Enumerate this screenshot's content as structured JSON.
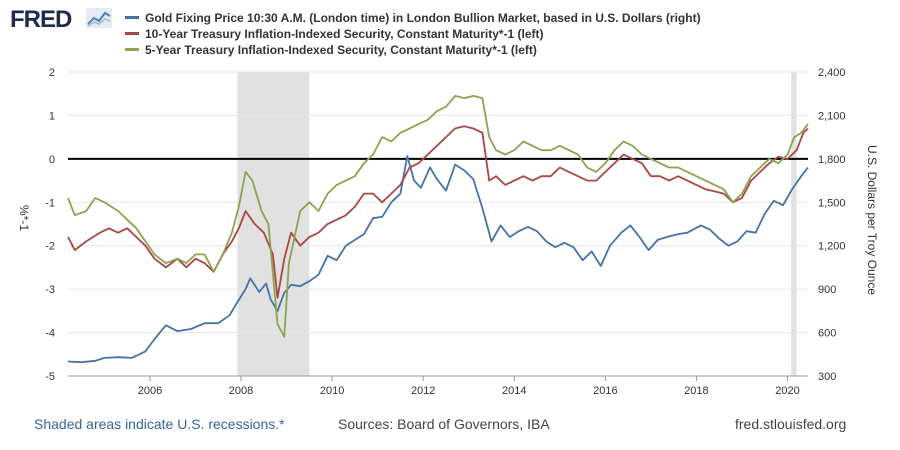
{
  "brand": {
    "logo_text": "FRED",
    "logo_icon": "chart-line-icon"
  },
  "legend": [
    {
      "label": "Gold Fixing Price 10:30 A.M. (London time) in London Bullion Market, based in U.S. Dollars (right)",
      "color": "#4572a7"
    },
    {
      "label": "10-Year Treasury Inflation-Indexed Security, Constant Maturity*-1 (left)",
      "color": "#aa4643"
    },
    {
      "label": "5-Year Treasury Inflation-Indexed Security, Constant Maturity*-1 (left)",
      "color": "#89a54e"
    }
  ],
  "footer": {
    "note": "Shaded areas indicate U.S. recessions.*",
    "sources": "Sources: Board of Governors, IBA",
    "site": "fred.stlouisfed.org"
  },
  "chart_data": {
    "type": "line",
    "x_axis": {
      "min": 2004.2,
      "max": 2020.45,
      "ticks": [
        2006,
        2008,
        2010,
        2012,
        2014,
        2016,
        2018,
        2020
      ],
      "tick_labels": [
        "2006",
        "2008",
        "2010",
        "2012",
        "2014",
        "2016",
        "2018",
        "2020"
      ]
    },
    "y_left": {
      "label": "%*-1",
      "min": -5,
      "max": 2,
      "ticks": [
        -5,
        -4,
        -3,
        -2,
        -1,
        0,
        1,
        2
      ],
      "tick_labels": [
        "-5",
        "-4",
        "-3",
        "-2",
        "-1",
        "0",
        "1",
        "2"
      ]
    },
    "y_right": {
      "label": "U.S. Dollars per Troy Ounce",
      "min": 300,
      "max": 2400,
      "ticks": [
        300,
        600,
        900,
        1200,
        1500,
        1800,
        2100,
        2400
      ],
      "tick_labels": [
        "300",
        "600",
        "900",
        "1,200",
        "1,500",
        "1,800",
        "2,100",
        "2,400"
      ]
    },
    "grid": true,
    "zero_line": 0,
    "recessions": [
      [
        2007.92,
        2009.5
      ],
      [
        2020.08,
        2020.2
      ]
    ],
    "series": [
      {
        "name": "Gold Fixing Price 10:30 A.M. (London time) in London Bullion Market, based in U.S. Dollars (right)",
        "axis": "right",
        "color": "#4572a7",
        "points": [
          [
            2004.2,
            400
          ],
          [
            2004.5,
            395
          ],
          [
            2004.8,
            405
          ],
          [
            2005.0,
            425
          ],
          [
            2005.3,
            430
          ],
          [
            2005.6,
            425
          ],
          [
            2005.9,
            470
          ],
          [
            2006.1,
            555
          ],
          [
            2006.35,
            650
          ],
          [
            2006.6,
            610
          ],
          [
            2006.9,
            625
          ],
          [
            2007.2,
            665
          ],
          [
            2007.5,
            665
          ],
          [
            2007.75,
            720
          ],
          [
            2007.9,
            800
          ],
          [
            2008.1,
            900
          ],
          [
            2008.2,
            975
          ],
          [
            2008.4,
            880
          ],
          [
            2008.55,
            940
          ],
          [
            2008.65,
            830
          ],
          [
            2008.8,
            750
          ],
          [
            2008.95,
            875
          ],
          [
            2009.1,
            930
          ],
          [
            2009.3,
            920
          ],
          [
            2009.5,
            955
          ],
          [
            2009.7,
            1000
          ],
          [
            2009.9,
            1130
          ],
          [
            2010.1,
            1100
          ],
          [
            2010.3,
            1200
          ],
          [
            2010.5,
            1240
          ],
          [
            2010.7,
            1280
          ],
          [
            2010.9,
            1390
          ],
          [
            2011.1,
            1400
          ],
          [
            2011.3,
            1500
          ],
          [
            2011.5,
            1560
          ],
          [
            2011.65,
            1820
          ],
          [
            2011.8,
            1650
          ],
          [
            2011.95,
            1600
          ],
          [
            2012.15,
            1740
          ],
          [
            2012.3,
            1660
          ],
          [
            2012.5,
            1580
          ],
          [
            2012.7,
            1760
          ],
          [
            2012.9,
            1720
          ],
          [
            2013.1,
            1660
          ],
          [
            2013.3,
            1460
          ],
          [
            2013.5,
            1230
          ],
          [
            2013.7,
            1340
          ],
          [
            2013.9,
            1260
          ],
          [
            2014.1,
            1300
          ],
          [
            2014.3,
            1330
          ],
          [
            2014.5,
            1300
          ],
          [
            2014.7,
            1230
          ],
          [
            2014.9,
            1190
          ],
          [
            2015.1,
            1220
          ],
          [
            2015.3,
            1190
          ],
          [
            2015.5,
            1100
          ],
          [
            2015.7,
            1160
          ],
          [
            2015.9,
            1060
          ],
          [
            2016.1,
            1200
          ],
          [
            2016.35,
            1290
          ],
          [
            2016.55,
            1340
          ],
          [
            2016.75,
            1260
          ],
          [
            2016.95,
            1170
          ],
          [
            2017.15,
            1240
          ],
          [
            2017.35,
            1260
          ],
          [
            2017.6,
            1280
          ],
          [
            2017.8,
            1290
          ],
          [
            2018.1,
            1340
          ],
          [
            2018.3,
            1310
          ],
          [
            2018.5,
            1250
          ],
          [
            2018.7,
            1200
          ],
          [
            2018.9,
            1230
          ],
          [
            2019.1,
            1300
          ],
          [
            2019.3,
            1290
          ],
          [
            2019.5,
            1420
          ],
          [
            2019.7,
            1510
          ],
          [
            2019.9,
            1480
          ],
          [
            2020.1,
            1590
          ],
          [
            2020.3,
            1680
          ],
          [
            2020.45,
            1740
          ]
        ]
      },
      {
        "name": "10-Year Treasury Inflation-Indexed Security, Constant Maturity*-1 (left)",
        "axis": "left",
        "color": "#aa4643",
        "points": [
          [
            2004.2,
            -1.8
          ],
          [
            2004.35,
            -2.1
          ],
          [
            2004.6,
            -1.9
          ],
          [
            2004.9,
            -1.7
          ],
          [
            2005.1,
            -1.6
          ],
          [
            2005.3,
            -1.7
          ],
          [
            2005.5,
            -1.6
          ],
          [
            2005.7,
            -1.8
          ],
          [
            2005.9,
            -2.0
          ],
          [
            2006.1,
            -2.3
          ],
          [
            2006.35,
            -2.5
          ],
          [
            2006.6,
            -2.3
          ],
          [
            2006.8,
            -2.5
          ],
          [
            2007.0,
            -2.3
          ],
          [
            2007.2,
            -2.4
          ],
          [
            2007.4,
            -2.6
          ],
          [
            2007.6,
            -2.2
          ],
          [
            2007.8,
            -1.9
          ],
          [
            2007.95,
            -1.6
          ],
          [
            2008.1,
            -1.2
          ],
          [
            2008.3,
            -1.5
          ],
          [
            2008.5,
            -1.7
          ],
          [
            2008.7,
            -2.2
          ],
          [
            2008.8,
            -3.2
          ],
          [
            2008.95,
            -2.3
          ],
          [
            2009.1,
            -1.7
          ],
          [
            2009.3,
            -2.0
          ],
          [
            2009.5,
            -1.8
          ],
          [
            2009.7,
            -1.7
          ],
          [
            2009.9,
            -1.5
          ],
          [
            2010.1,
            -1.4
          ],
          [
            2010.3,
            -1.3
          ],
          [
            2010.5,
            -1.1
          ],
          [
            2010.7,
            -0.8
          ],
          [
            2010.9,
            -0.8
          ],
          [
            2011.1,
            -1.0
          ],
          [
            2011.3,
            -0.8
          ],
          [
            2011.5,
            -0.6
          ],
          [
            2011.7,
            -0.2
          ],
          [
            2011.9,
            -0.1
          ],
          [
            2012.1,
            0.1
          ],
          [
            2012.3,
            0.3
          ],
          [
            2012.5,
            0.5
          ],
          [
            2012.7,
            0.7
          ],
          [
            2012.9,
            0.75
          ],
          [
            2013.1,
            0.7
          ],
          [
            2013.3,
            0.6
          ],
          [
            2013.45,
            -0.5
          ],
          [
            2013.6,
            -0.4
          ],
          [
            2013.8,
            -0.6
          ],
          [
            2014.0,
            -0.5
          ],
          [
            2014.2,
            -0.4
          ],
          [
            2014.4,
            -0.5
          ],
          [
            2014.6,
            -0.4
          ],
          [
            2014.8,
            -0.4
          ],
          [
            2015.0,
            -0.2
          ],
          [
            2015.2,
            -0.3
          ],
          [
            2015.4,
            -0.4
          ],
          [
            2015.6,
            -0.5
          ],
          [
            2015.8,
            -0.5
          ],
          [
            2016.0,
            -0.3
          ],
          [
            2016.2,
            -0.1
          ],
          [
            2016.4,
            0.1
          ],
          [
            2016.6,
            0.0
          ],
          [
            2016.8,
            -0.1
          ],
          [
            2017.0,
            -0.4
          ],
          [
            2017.2,
            -0.4
          ],
          [
            2017.4,
            -0.5
          ],
          [
            2017.6,
            -0.4
          ],
          [
            2017.8,
            -0.5
          ],
          [
            2018.0,
            -0.6
          ],
          [
            2018.2,
            -0.7
          ],
          [
            2018.4,
            -0.75
          ],
          [
            2018.6,
            -0.8
          ],
          [
            2018.8,
            -1.0
          ],
          [
            2019.0,
            -0.9
          ],
          [
            2019.2,
            -0.5
          ],
          [
            2019.4,
            -0.3
          ],
          [
            2019.6,
            -0.1
          ],
          [
            2019.8,
            0.05
          ],
          [
            2020.0,
            0.0
          ],
          [
            2020.2,
            0.2
          ],
          [
            2020.35,
            0.6
          ],
          [
            2020.45,
            0.7
          ]
        ]
      },
      {
        "name": "5-Year Treasury Inflation-Indexed Security, Constant Maturity*-1 (left)",
        "axis": "left",
        "color": "#89a54e",
        "points": [
          [
            2004.2,
            -0.9
          ],
          [
            2004.35,
            -1.3
          ],
          [
            2004.6,
            -1.2
          ],
          [
            2004.8,
            -0.9
          ],
          [
            2005.0,
            -1.0
          ],
          [
            2005.3,
            -1.2
          ],
          [
            2005.5,
            -1.4
          ],
          [
            2005.7,
            -1.6
          ],
          [
            2005.9,
            -1.9
          ],
          [
            2006.1,
            -2.2
          ],
          [
            2006.35,
            -2.4
          ],
          [
            2006.6,
            -2.3
          ],
          [
            2006.8,
            -2.4
          ],
          [
            2007.0,
            -2.2
          ],
          [
            2007.2,
            -2.2
          ],
          [
            2007.4,
            -2.6
          ],
          [
            2007.6,
            -2.2
          ],
          [
            2007.8,
            -1.7
          ],
          [
            2007.95,
            -1.1
          ],
          [
            2008.1,
            -0.3
          ],
          [
            2008.25,
            -0.5
          ],
          [
            2008.45,
            -1.2
          ],
          [
            2008.6,
            -1.5
          ],
          [
            2008.8,
            -3.8
          ],
          [
            2008.95,
            -4.1
          ],
          [
            2009.05,
            -2.4
          ],
          [
            2009.3,
            -1.2
          ],
          [
            2009.5,
            -1.0
          ],
          [
            2009.7,
            -1.2
          ],
          [
            2009.9,
            -0.8
          ],
          [
            2010.1,
            -0.6
          ],
          [
            2010.3,
            -0.5
          ],
          [
            2010.5,
            -0.4
          ],
          [
            2010.7,
            -0.1
          ],
          [
            2010.9,
            0.1
          ],
          [
            2011.1,
            0.5
          ],
          [
            2011.3,
            0.4
          ],
          [
            2011.5,
            0.6
          ],
          [
            2011.7,
            0.7
          ],
          [
            2011.9,
            0.8
          ],
          [
            2012.1,
            0.9
          ],
          [
            2012.3,
            1.1
          ],
          [
            2012.5,
            1.2
          ],
          [
            2012.7,
            1.45
          ],
          [
            2012.9,
            1.4
          ],
          [
            2013.1,
            1.45
          ],
          [
            2013.3,
            1.4
          ],
          [
            2013.45,
            0.5
          ],
          [
            2013.6,
            0.2
          ],
          [
            2013.8,
            0.1
          ],
          [
            2014.0,
            0.2
          ],
          [
            2014.2,
            0.4
          ],
          [
            2014.4,
            0.3
          ],
          [
            2014.6,
            0.2
          ],
          [
            2014.8,
            0.2
          ],
          [
            2015.0,
            0.3
          ],
          [
            2015.2,
            0.2
          ],
          [
            2015.4,
            0.1
          ],
          [
            2015.6,
            -0.2
          ],
          [
            2015.8,
            -0.3
          ],
          [
            2016.0,
            -0.1
          ],
          [
            2016.2,
            0.2
          ],
          [
            2016.4,
            0.4
          ],
          [
            2016.6,
            0.3
          ],
          [
            2016.8,
            0.1
          ],
          [
            2017.0,
            0.0
          ],
          [
            2017.2,
            -0.1
          ],
          [
            2017.4,
            -0.2
          ],
          [
            2017.6,
            -0.2
          ],
          [
            2017.8,
            -0.3
          ],
          [
            2018.0,
            -0.4
          ],
          [
            2018.2,
            -0.5
          ],
          [
            2018.4,
            -0.6
          ],
          [
            2018.6,
            -0.7
          ],
          [
            2018.8,
            -1.0
          ],
          [
            2019.0,
            -0.8
          ],
          [
            2019.2,
            -0.4
          ],
          [
            2019.4,
            -0.2
          ],
          [
            2019.6,
            0.0
          ],
          [
            2019.8,
            -0.1
          ],
          [
            2020.0,
            0.1
          ],
          [
            2020.15,
            0.5
          ],
          [
            2020.3,
            0.6
          ],
          [
            2020.45,
            0.8
          ]
        ]
      }
    ]
  }
}
